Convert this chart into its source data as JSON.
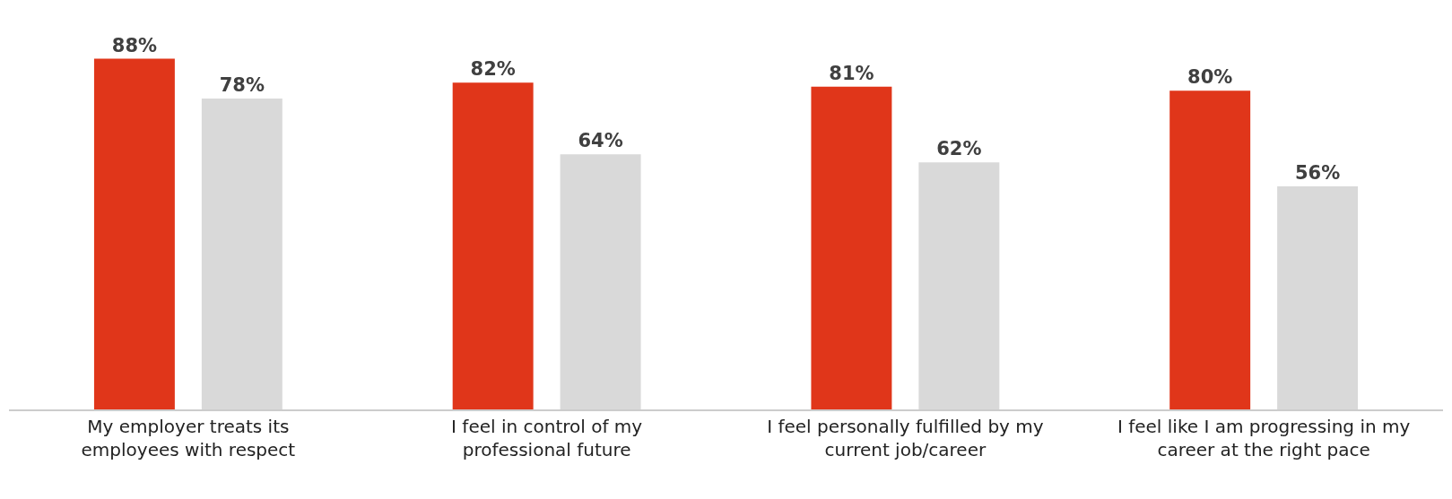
{
  "chart_data": {
    "type": "bar",
    "categories": [
      "My employer treats its\nemployees with respect",
      "I feel in control of my\nprofessional future",
      "I feel personally fulfilled by my\ncurrent job/career",
      "I feel like I am progressing in my\ncareer at the right pace"
    ],
    "series": [
      {
        "color": "#e0361a",
        "values": [
          88,
          82,
          81,
          80
        ],
        "value_labels": [
          "88%",
          "82%",
          "81%",
          "80%"
        ]
      },
      {
        "color": "#d9d9d9",
        "values": [
          78,
          64,
          62,
          56
        ],
        "value_labels": [
          "78%",
          "64%",
          "62%",
          "56%"
        ]
      }
    ]
  }
}
